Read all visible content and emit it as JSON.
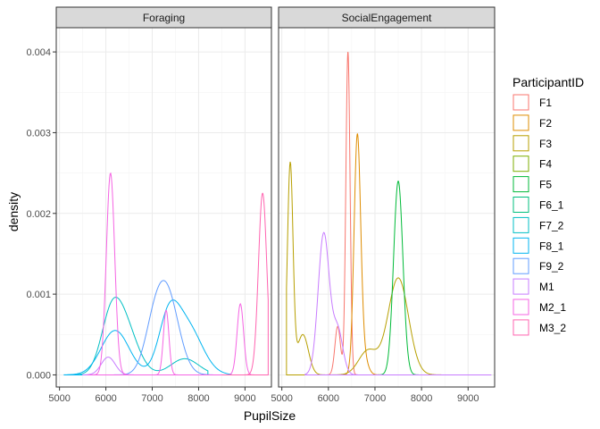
{
  "chart_data": {
    "type": "area",
    "xlabel": "PupilSize",
    "ylabel": "density",
    "xlim": [
      4930,
      9570
    ],
    "ylim": [
      -0.00015,
      0.0043
    ],
    "xticks": [
      5000,
      6000,
      7000,
      8000,
      9000
    ],
    "yticks": [
      0.0,
      0.001,
      0.002,
      0.003,
      0.004
    ],
    "ytick_labels": [
      "0.000",
      "0.001",
      "0.002",
      "0.003",
      "0.004"
    ],
    "grid": true,
    "legend_title": "ParticipantID",
    "legend_position": "right",
    "series": [
      {
        "name": "F1",
        "color": "#F8766D"
      },
      {
        "name": "F2",
        "color": "#DE8C00"
      },
      {
        "name": "F3",
        "color": "#B79F00"
      },
      {
        "name": "F4",
        "color": "#7CAE00"
      },
      {
        "name": "F5",
        "color": "#00BA38"
      },
      {
        "name": "F6_1",
        "color": "#00BF7D"
      },
      {
        "name": "F7_2",
        "color": "#00BFC4"
      },
      {
        "name": "F8_1",
        "color": "#00B4F0"
      },
      {
        "name": "F9_2",
        "color": "#619CFF"
      },
      {
        "name": "M1",
        "color": "#C77CFF"
      },
      {
        "name": "M2_1",
        "color": "#F564E3"
      },
      {
        "name": "M3_2",
        "color": "#FF64B0"
      }
    ],
    "facets": [
      {
        "label": "Foraging",
        "curves": [
          {
            "series": "F7_2",
            "range": [
              5100,
              8200
            ],
            "components": [
              [
                6100,
                220,
                0.00055
              ],
              [
                6400,
                280,
                0.0006
              ],
              [
                7700,
                300,
                0.0002
              ]
            ]
          },
          {
            "series": "F8_1",
            "range": [
              5100,
              8700
            ],
            "components": [
              [
                6200,
                300,
                0.00055
              ],
              [
                7350,
                220,
                0.0006
              ],
              [
                7750,
                320,
                0.0006
              ]
            ]
          },
          {
            "series": "F9_2",
            "range": [
              5500,
              8300
            ],
            "components": [
              [
                7300,
                260,
                0.00105
              ],
              [
                7000,
                200,
                0.0003
              ]
            ]
          },
          {
            "series": "M1",
            "range": [
              5500,
              6600
            ],
            "components": [
              [
                6050,
                150,
                0.00022
              ]
            ]
          },
          {
            "series": "M2_1",
            "range": [
              5600,
              9200
            ],
            "components": [
              [
                6100,
                90,
                0.0025
              ],
              [
                7300,
                60,
                0.0008
              ],
              [
                8900,
                70,
                0.00088
              ]
            ]
          },
          {
            "series": "M3_2",
            "range": [
              8500,
              9500
            ],
            "components": [
              [
                9380,
                90,
                0.00225
              ]
            ]
          }
        ]
      },
      {
        "label": "SocialEngagement",
        "curves": [
          {
            "series": "F1",
            "range": [
              5700,
              7000
            ],
            "components": [
              [
                6420,
                45,
                0.004
              ],
              [
                6200,
                60,
                0.0006
              ]
            ]
          },
          {
            "series": "F2",
            "range": [
              6100,
              7200
            ],
            "components": [
              [
                6620,
                70,
                0.0028
              ],
              [
                6720,
                100,
                0.0003
              ]
            ]
          },
          {
            "series": "F3",
            "range": [
              5100,
              8500
            ],
            "components": [
              [
                5180,
                60,
                0.0026
              ],
              [
                5450,
                120,
                0.0005
              ],
              [
                6850,
                200,
                0.0003
              ],
              [
                7500,
                220,
                0.0012
              ]
            ]
          },
          {
            "series": "F5",
            "range": [
              6500,
              8100
            ],
            "components": [
              [
                7500,
                100,
                0.0024
              ]
            ]
          },
          {
            "series": "M1",
            "range": [
              5500,
              9500
            ],
            "components": [
              [
                5900,
                120,
                0.00175
              ],
              [
                6200,
                110,
                0.00055
              ]
            ]
          }
        ]
      }
    ]
  }
}
